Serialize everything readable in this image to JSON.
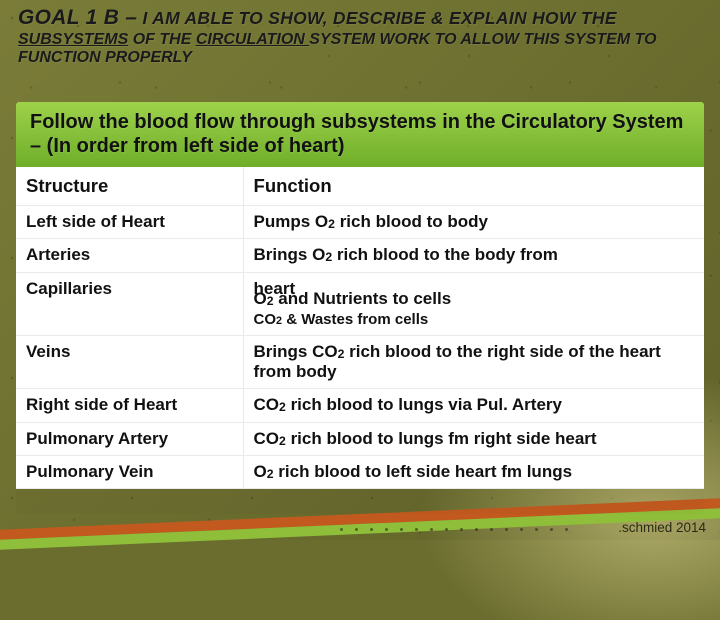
{
  "header": {
    "goal_lead": "GOAL 1 B –",
    "goal_rest": "  I AM ABLE TO SHOW, DESCRIBE & EXPLAIN HOW THE",
    "sub_line_pre": "",
    "sub_line_ul1": "SUBSYSTEMS",
    "sub_line_mid": " OF THE ",
    "sub_line_ul2": "CIRCULATION ",
    "sub_line_post": " SYSTEM WORK TO ALLOW THIS SYSTEM TO FUNCTION PROPERLY"
  },
  "band": "Follow the blood flow through subsystems in the Circulatory System – (In order from left side of heart)",
  "table": {
    "columns": [
      "Structure",
      "Function"
    ],
    "rows": [
      {
        "structure": "Left side of Heart",
        "function_html": "Pumps O<sub>2</sub> rich blood to body"
      },
      {
        "structure": "Arteries",
        "function_html": "Brings O<sub>2</sub> rich blood to the body from heart",
        "overlap_with_next": true
      },
      {
        "structure": "Capillaries",
        "function_html": "O<sub>2</sub> and Nutrients to cells",
        "extra_line_html": "CO<sub>2</sub> & Wastes from cells"
      },
      {
        "structure": "Veins",
        "function_html": "Brings CO<sub>2</sub> rich blood  to the right side of the heart from body"
      },
      {
        "structure": "Right side of Heart",
        "function_html": "CO<sub>2</sub> rich blood to lungs via Pul.  Artery"
      },
      {
        "structure": "Pulmonary Artery",
        "function_html": "CO<sub>2</sub> rich blood to lungs fm right side heart"
      },
      {
        "structure": "Pulmonary Vein",
        "function_html": "O<sub>2</sub> rich blood to left side heart fm lungs"
      }
    ]
  },
  "credit": ".schmied 2014",
  "colors": {
    "bg": "#6b6d2f",
    "band_top": "#9ed24a",
    "band_bottom": "#6fae2a",
    "stripe_orange": "#c25a1f",
    "stripe_green": "#8fbf3a",
    "table_bg": "#ffffff",
    "grid": "#eaeaea"
  }
}
